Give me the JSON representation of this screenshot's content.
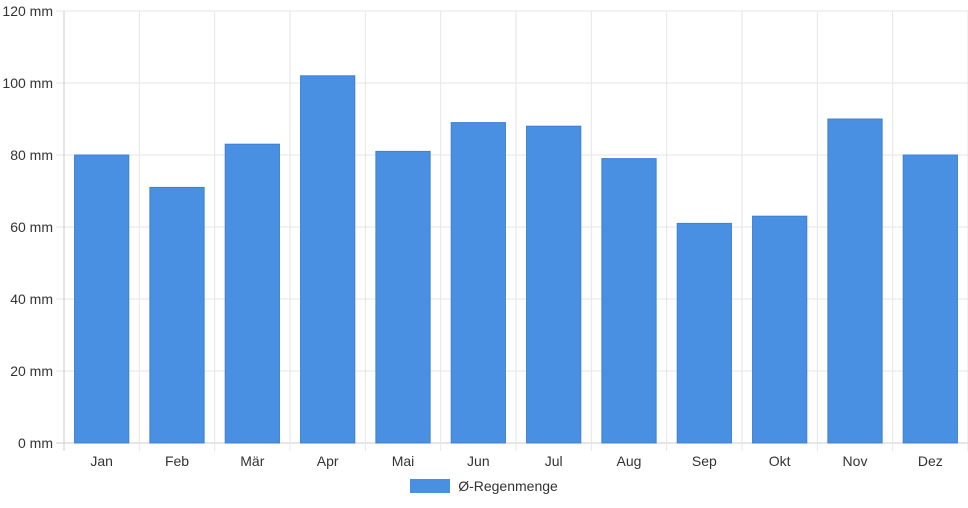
{
  "chart_data": {
    "type": "bar",
    "categories": [
      "Jan",
      "Feb",
      "Mär",
      "Apr",
      "Mai",
      "Jun",
      "Jul",
      "Aug",
      "Sep",
      "Okt",
      "Nov",
      "Dez"
    ],
    "series": [
      {
        "name": "Ø-Regenmenge",
        "values": [
          80,
          71,
          83,
          102,
          81,
          89,
          88,
          79,
          61,
          63,
          90,
          80
        ],
        "color": "#4a90e2"
      }
    ],
    "y_ticks": [
      "0 mm",
      "20 mm",
      "40 mm",
      "60 mm",
      "80 mm",
      "100 mm",
      "120 mm"
    ],
    "ylim": [
      0,
      120
    ],
    "ystep": 20,
    "grid": true,
    "legend_position": "bottom"
  }
}
